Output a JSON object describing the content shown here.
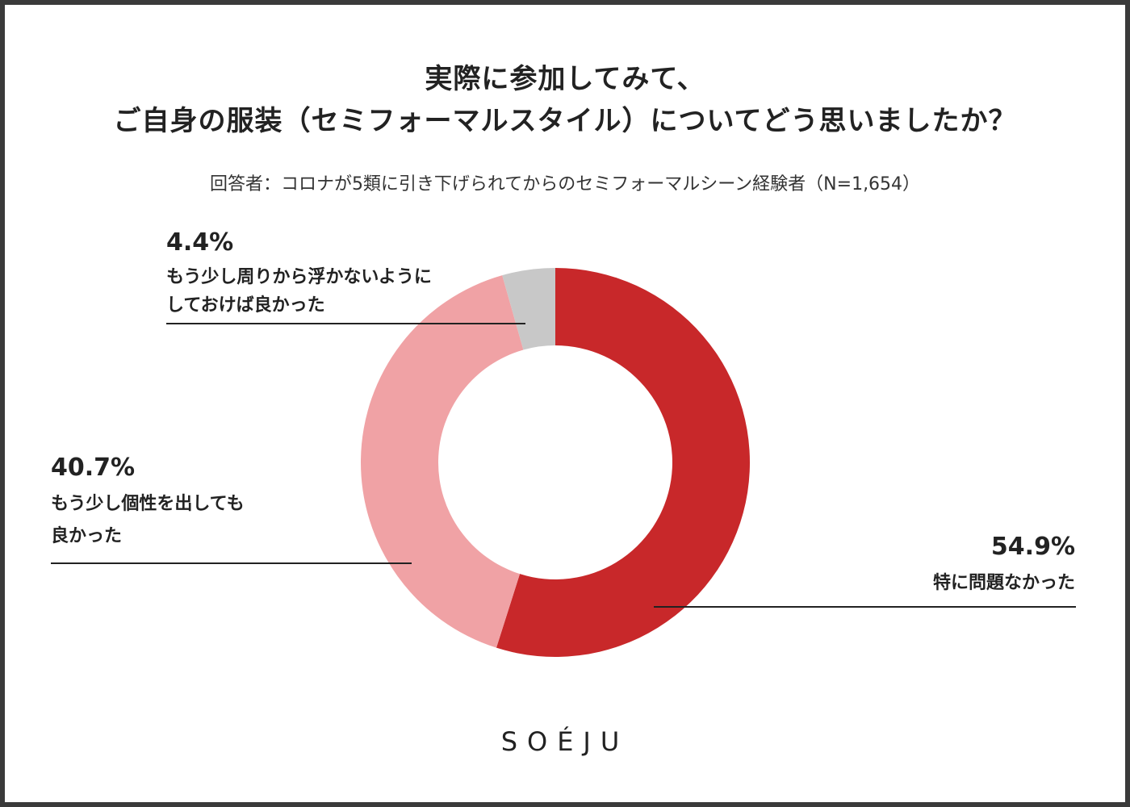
{
  "chart_data": {
    "type": "pie",
    "variant": "donut",
    "title_lines": [
      "実際に参加してみて、",
      "ご自身の服装（セミフォーマルスタイル）についてどう思いましたか？"
    ],
    "subtitle": "回答者：コロナが5類に引き下げられてからのセミフォーマルシーン経験者（N=1,654）",
    "slices": [
      {
        "label": "特に問題なかった",
        "value": 54.9,
        "display": "54.9%",
        "color": "#c8282a"
      },
      {
        "label_lines": [
          "もう少し個性を出しても",
          "良かった"
        ],
        "value": 40.7,
        "display": "40.7%",
        "color": "#f0a2a5"
      },
      {
        "label_lines": [
          "もう少し周りから浮かないように",
          "しておけば良かった"
        ],
        "value": 4.4,
        "display": "4.4%",
        "color": "#c8c8c8"
      }
    ],
    "start": "12 o'clock",
    "direction": "clockwise"
  },
  "brand": "SOÉJU"
}
